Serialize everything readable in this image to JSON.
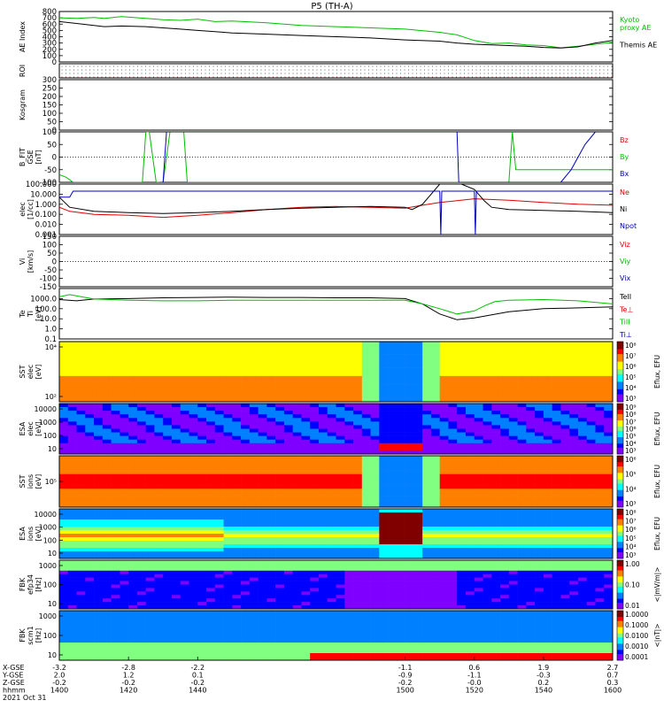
{
  "header": {
    "title": "P5 (TH-A)"
  },
  "chart_data": [
    {
      "type": "line",
      "id": "ae",
      "ylabel": "AE Index",
      "ylim": [
        0,
        800
      ],
      "yticks": [
        "0",
        "100",
        "200",
        "300",
        "400",
        "500",
        "600",
        "700",
        "800"
      ],
      "series": [
        {
          "name": "Kyoto",
          "name2": "proxy AE",
          "color": "#00c000",
          "x": [
            1400,
            1405,
            1410,
            1413,
            1418,
            1425,
            1430,
            1435,
            1440,
            1445,
            1450,
            1460,
            1470,
            1480,
            1490,
            1500,
            1510,
            1515,
            1520,
            1525,
            1530,
            1535,
            1540,
            1545,
            1550,
            1555,
            1560
          ],
          "y": [
            700,
            690,
            705,
            690,
            720,
            690,
            670,
            660,
            680,
            640,
            650,
            620,
            580,
            560,
            540,
            520,
            470,
            430,
            340,
            290,
            300,
            270,
            260,
            225,
            250,
            280,
            310
          ]
        },
        {
          "name": "Themis AE",
          "color": "#000000",
          "x": [
            1400,
            1405,
            1410,
            1413,
            1418,
            1425,
            1430,
            1435,
            1440,
            1445,
            1450,
            1460,
            1470,
            1480,
            1490,
            1500,
            1510,
            1515,
            1520,
            1525,
            1530,
            1535,
            1540,
            1545,
            1550,
            1555,
            1560
          ],
          "y": [
            640,
            610,
            580,
            560,
            570,
            560,
            540,
            520,
            500,
            480,
            460,
            440,
            420,
            400,
            380,
            350,
            330,
            300,
            280,
            270,
            260,
            250,
            230,
            220,
            240,
            300,
            340
          ]
        }
      ]
    },
    {
      "type": "scatter",
      "id": "roi",
      "ylabel": "ROI",
      "rows": 4
    },
    {
      "type": "line",
      "id": "kgram",
      "ylabel": "Kosgram",
      "ylim": [
        0,
        300
      ],
      "yticks": [
        "0",
        "50",
        "100",
        "150",
        "200",
        "250",
        "300"
      ],
      "series": []
    },
    {
      "type": "line",
      "id": "bfield",
      "ylabel": "B_FIT",
      "ylabel2": "GSE",
      "ylabel3": "[nT]",
      "ylim": [
        -100,
        100
      ],
      "yticks": [
        "-100",
        "-50",
        "0",
        "50",
        "100"
      ],
      "series": [
        {
          "name": "Bz",
          "color": "#e00000",
          "x": [],
          "y": []
        },
        {
          "name": "By",
          "color": "#00c000",
          "x": [
            1400,
            1402,
            1404,
            1424,
            1425,
            1426,
            1428,
            1430,
            1432,
            1436,
            1437,
            1500,
            1530,
            1531,
            1532,
            1560
          ],
          "y": [
            -70,
            -80,
            -100,
            -100,
            100,
            100,
            -100,
            -100,
            100,
            100,
            -100,
            -100,
            -100,
            100,
            -50,
            -50
          ]
        },
        {
          "name": "Bx",
          "color": "#0000c0",
          "x": [
            1429,
            1430,
            1431,
            1432,
            1515,
            1515.5,
            1516,
            1545,
            1548,
            1552,
            1555
          ],
          "y": [
            -100,
            -100,
            100,
            100,
            100,
            -100,
            -100,
            -100,
            -50,
            50,
            100
          ]
        }
      ]
    },
    {
      "type": "line",
      "id": "density",
      "ylabel": "elec",
      "ylabel2": "[1/cc]",
      "yscale": "log",
      "ylim": [
        0.001,
        100
      ],
      "yticks": [
        "0.001",
        "0.010",
        "0.100",
        "1.000",
        "10.000",
        "100.000"
      ],
      "series": [
        {
          "name": "Ne",
          "color": "#e00000",
          "x": [
            1400,
            1403,
            1410,
            1420,
            1430,
            1440,
            1450,
            1460,
            1470,
            1480,
            1490,
            1500,
            1505,
            1510,
            1520,
            1530,
            1540,
            1550,
            1560
          ],
          "y": [
            0.5,
            0.2,
            0.1,
            0.08,
            0.05,
            0.08,
            0.15,
            0.3,
            0.5,
            0.6,
            0.5,
            0.4,
            0.8,
            1.5,
            3.5,
            2.5,
            1.5,
            1.0,
            0.8
          ]
        },
        {
          "name": "Ni",
          "color": "#000000",
          "x": [
            1400,
            1403,
            1410,
            1420,
            1430,
            1440,
            1450,
            1460,
            1470,
            1480,
            1490,
            1500,
            1502,
            1505,
            1510,
            1515,
            1520,
            1523,
            1525,
            1530,
            1540,
            1550,
            1560
          ],
          "y": [
            5,
            0.5,
            0.2,
            0.15,
            0.12,
            0.15,
            0.2,
            0.3,
            0.4,
            0.5,
            0.6,
            0.5,
            0.3,
            1,
            100,
            150,
            30,
            2,
            0.5,
            0.3,
            0.25,
            0.2,
            0.15
          ]
        },
        {
          "name": "Npot",
          "color": "#0000c0",
          "x": [
            1400,
            1403,
            1404,
            1500,
            1510,
            1510.3,
            1510.6,
            1513,
            1520,
            1520.3,
            1520.6,
            1525,
            1560
          ],
          "y": [
            5,
            5,
            20,
            20,
            20,
            0.001,
            20,
            20,
            20,
            0.001,
            20,
            20,
            20
          ]
        }
      ]
    },
    {
      "type": "line",
      "id": "vel",
      "ylabel": "Vi",
      "ylabel2": "[km/s]",
      "ylim": [
        -150,
        150
      ],
      "yticks": [
        "-150",
        "-100",
        "-50",
        "0",
        "50",
        "100",
        "150"
      ],
      "series": [
        {
          "name": "Viz",
          "color": "#e00000",
          "x": [],
          "y": []
        },
        {
          "name": "Viy",
          "color": "#00c000",
          "x": [],
          "y": []
        },
        {
          "name": "Vix",
          "color": "#0000c0",
          "x": [],
          "y": []
        }
      ]
    },
    {
      "type": "line",
      "id": "temp",
      "ylabel": "Te",
      "ylabel2": "Ti",
      "ylabel3": "[eV]",
      "yscale": "log",
      "ylim": [
        0.1,
        10000
      ],
      "yticks": [
        "0.1",
        "1.0",
        "10.0",
        "100.0",
        "1000.0"
      ],
      "series": [
        {
          "name": "TeII",
          "color": "#000000",
          "x": [
            1400,
            1405,
            1410,
            1420,
            1430,
            1440,
            1450,
            1460,
            1470,
            1480,
            1490,
            1500,
            1505,
            1510,
            1515,
            1520,
            1530,
            1540,
            1550,
            1560
          ],
          "y": [
            800,
            600,
            900,
            1000,
            1200,
            1300,
            1400,
            1300,
            1300,
            1200,
            1200,
            1000,
            300,
            30,
            8,
            12,
            50,
            100,
            120,
            150
          ]
        },
        {
          "name": "Te⊥",
          "color": "#e00000",
          "x": [],
          "y": []
        },
        {
          "name": "TiII",
          "color": "#00c000",
          "x": [
            1400,
            1403,
            1410,
            1420,
            1430,
            1440,
            1450,
            1460,
            1470,
            1480,
            1490,
            1500,
            1505,
            1510,
            1515,
            1520,
            1523,
            1526,
            1530,
            1540,
            1550,
            1560
          ],
          "y": [
            1500,
            2500,
            900,
            700,
            600,
            600,
            700,
            700,
            700,
            700,
            700,
            700,
            300,
            100,
            30,
            60,
            200,
            500,
            700,
            800,
            600,
            300
          ]
        },
        {
          "name": "Ti⊥",
          "color": "#0000c0",
          "x": [],
          "y": []
        }
      ]
    },
    {
      "type": "heatmap",
      "id": "sste",
      "ylabel": "SST",
      "ylabel2": "elec",
      "ylabel3": "[eV]",
      "yticks": [
        "10²",
        "10⁴"
      ],
      "colorbar": [
        "10³",
        "10⁴",
        "10⁵",
        "10⁶",
        "10⁷",
        "10⁸"
      ],
      "cblabel": "Eflux, EFU"
    },
    {
      "type": "heatmap",
      "id": "esae",
      "ylabel": "ESA",
      "ylabel2": "elec",
      "ylabel3": "[eV]",
      "yticks": [
        "10",
        "100",
        "1000",
        "10000"
      ],
      "colorbar": [
        "10³",
        "10⁴",
        "10⁵",
        "10⁶",
        "10⁷",
        "10⁸",
        "10⁹"
      ],
      "cblabel": "Eflux, EFU"
    },
    {
      "type": "heatmap",
      "id": "ssti",
      "ylabel": "SST",
      "ylabel2": "ions",
      "ylabel3": "[eV]",
      "yticks": [
        "10⁵"
      ],
      "colorbar": [
        "10³",
        "10⁴",
        "10⁵",
        "10⁶"
      ],
      "cblabel": "Eflux, EFU"
    },
    {
      "type": "heatmap",
      "id": "esai",
      "ylabel": "ESA",
      "ylabel2": "ions",
      "ylabel3": "[eV]",
      "yticks": [
        "10",
        "100",
        "1000",
        "10000"
      ],
      "colorbar": [
        "10³",
        "10⁴",
        "10⁵",
        "10⁶",
        "10⁷",
        "10⁸"
      ],
      "cblabel": "Eflux, EFU"
    },
    {
      "type": "heatmap",
      "id": "fbke",
      "ylabel": "FBK",
      "ylabel2": "efp34",
      "ylabel3": "[Hz]",
      "yticks": [
        "10",
        "100",
        "1000"
      ],
      "colorbar": [
        "0.01",
        "0.10",
        "1.00"
      ],
      "cblabel": "<|mV/m|>"
    },
    {
      "type": "heatmap",
      "id": "fbkb",
      "ylabel": "FBK",
      "ylabel2": "scm1",
      "ylabel3": "[Hz]",
      "yticks": [
        "10",
        "100",
        "1000"
      ],
      "colorbar": [
        "0.0001",
        "0.0010",
        "0.0100",
        "0.1000",
        "1.0000"
      ],
      "cblabel": "<|nT|>"
    }
  ],
  "xaxis": {
    "labels": [
      "X-GSE",
      "Y-GSE",
      "Z-GSE",
      "hhmm",
      "2021 Oct 31"
    ],
    "ticks": [
      {
        "x": 1400,
        "v": [
          "-3.2",
          "2.0",
          "-0.2",
          "1400"
        ]
      },
      {
        "x": 1420,
        "v": [
          "-2.8",
          "1.2",
          "-0.2",
          "1420"
        ]
      },
      {
        "x": 1440,
        "v": [
          "-2.2",
          "0.1",
          "-0.2",
          "1440"
        ]
      },
      {
        "x": 1500,
        "v": [
          "-1.1",
          "-0.9",
          "-0.2",
          "1500"
        ]
      },
      {
        "x": 1520,
        "v": [
          "0.6",
          "-1.1",
          "-0.0",
          "1520"
        ]
      },
      {
        "x": 1540,
        "v": [
          "1.9",
          "-0.3",
          "0.2",
          "1540"
        ]
      },
      {
        "x": 1560,
        "v": [
          "2.7",
          "0.7",
          "0.3",
          "1600"
        ]
      }
    ]
  }
}
